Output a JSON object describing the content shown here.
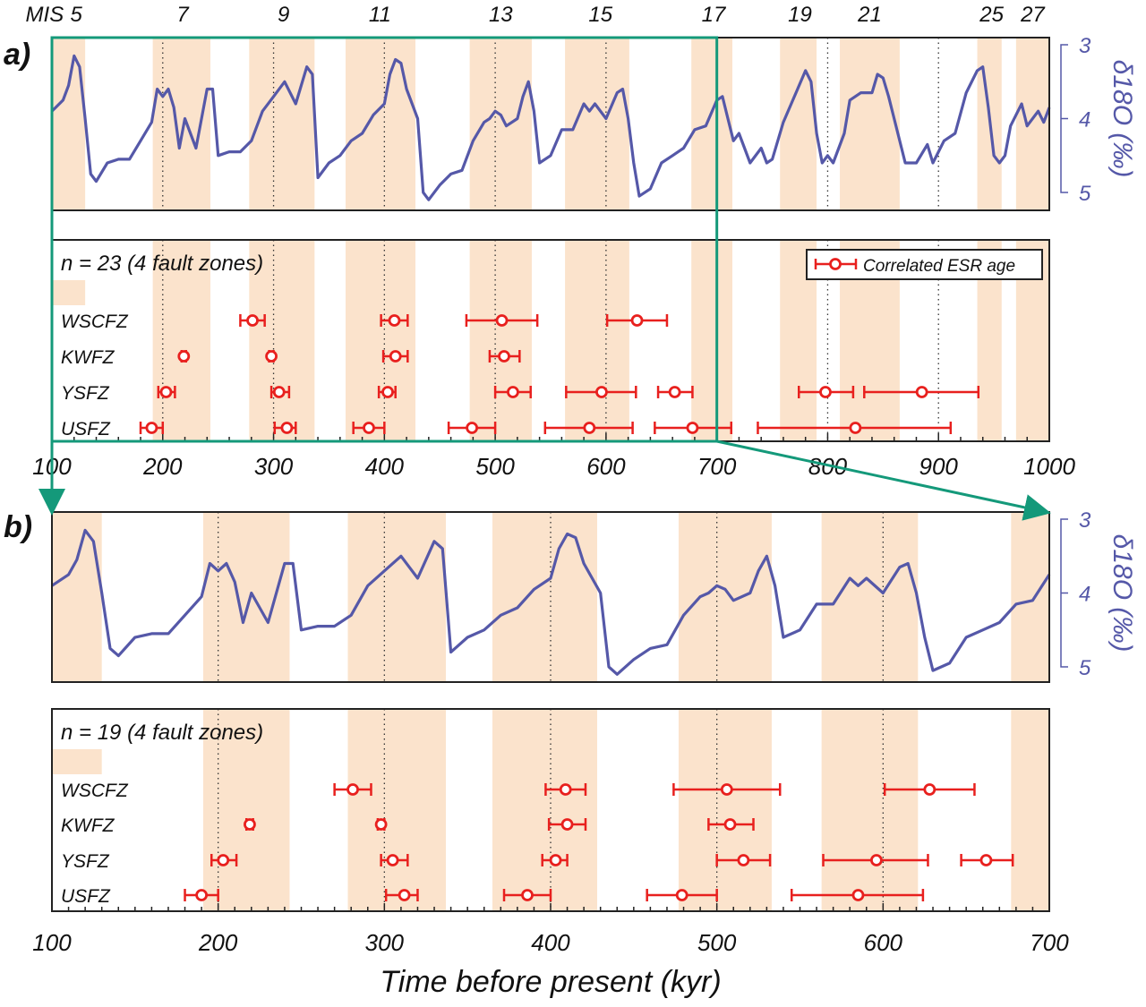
{
  "colors": {
    "band": "#fbe3cc",
    "curve": "#5558a8",
    "error_bar": "#e8201e",
    "zoom_box": "#14997a",
    "axis_right": "#5558a8"
  },
  "chart_data": [
    {
      "panel_label": "a)",
      "type": "line",
      "x_range": [
        100,
        1000
      ],
      "y_range": [
        3,
        5
      ],
      "y_inverted": true,
      "ylabel": "δ18O (‰)",
      "y_ticks": [
        "3",
        "4",
        "5"
      ],
      "x_ticks": [
        "100",
        "200",
        "300",
        "400",
        "500",
        "600",
        "700",
        "800",
        "900",
        "1000"
      ],
      "mis_prefix": "MIS",
      "mis_labels": [
        {
          "label": "5",
          "x": 122
        },
        {
          "label": "7",
          "x": 218
        },
        {
          "label": "9",
          "x": 309
        },
        {
          "label": "11",
          "x": 396
        },
        {
          "label": "13",
          "x": 505
        },
        {
          "label": "15",
          "x": 595
        },
        {
          "label": "17",
          "x": 697
        },
        {
          "label": "19",
          "x": 775
        },
        {
          "label": "21",
          "x": 838
        },
        {
          "label": "25",
          "x": 948
        },
        {
          "label": "27",
          "x": 985
        }
      ],
      "dotted_lines": [
        200,
        300,
        400,
        500,
        600,
        800,
        900
      ],
      "shaded_bands": [
        [
          100,
          130
        ],
        [
          191,
          243
        ],
        [
          278,
          337
        ],
        [
          365,
          428
        ],
        [
          477,
          533
        ],
        [
          563,
          621
        ],
        [
          677,
          714
        ],
        [
          757,
          790
        ],
        [
          811,
          865
        ],
        [
          935,
          957
        ],
        [
          970,
          1000
        ]
      ],
      "count_label": "n = 23 (4 fault zones)",
      "legend": "Correlated ESR age",
      "legend_position": "top-right",
      "rows": [
        {
          "name": "WSCFZ",
          "ages": [
            [
              281,
              270,
              292
            ],
            [
              409,
              397,
              421
            ],
            [
              506,
              474,
              538
            ],
            [
              628,
              601,
              655
            ]
          ]
        },
        {
          "name": "KWFZ",
          "ages": [
            [
              219,
              217,
              221
            ],
            [
              298,
              296,
              300
            ],
            [
              410,
              399,
              421
            ],
            [
              508,
              495,
              522
            ]
          ]
        },
        {
          "name": "YSFZ",
          "ages": [
            [
              203,
              196,
              211
            ],
            [
              305,
              298,
              314
            ],
            [
              403,
              395,
              410
            ],
            [
              516,
              500,
              532
            ],
            [
              596,
              564,
              627
            ],
            [
              662,
              647,
              678
            ],
            [
              798,
              774,
              823
            ],
            [
              885,
              833,
              936
            ]
          ]
        },
        {
          "name": "USFZ",
          "ages": [
            [
              190,
              180,
              200
            ],
            [
              312,
              301,
              320
            ],
            [
              386,
              372,
              400
            ],
            [
              479,
              458,
              500
            ],
            [
              585,
              545,
              624
            ],
            [
              678,
              644,
              713
            ],
            [
              825,
              737,
              911
            ]
          ]
        }
      ]
    },
    {
      "panel_label": "b)",
      "type": "line",
      "x_range": [
        100,
        700
      ],
      "y_range": [
        3,
        5
      ],
      "y_inverted": true,
      "ylabel": "δ18O (‰)",
      "y_ticks": [
        "3",
        "4",
        "5"
      ],
      "x_ticks": [
        "100",
        "200",
        "300",
        "400",
        "500",
        "600",
        "700"
      ],
      "xlabel": "Time before present (kyr)",
      "dotted_lines": [
        200,
        300,
        400,
        500,
        600
      ],
      "shaded_bands": [
        [
          100,
          130
        ],
        [
          191,
          243
        ],
        [
          278,
          337
        ],
        [
          365,
          428
        ],
        [
          477,
          533
        ],
        [
          563,
          621
        ],
        [
          677,
          700
        ]
      ],
      "count_label": "n = 19 (4 fault zones)",
      "rows": [
        {
          "name": "WSCFZ",
          "ages": [
            [
              281,
              270,
              292
            ],
            [
              409,
              397,
              421
            ],
            [
              506,
              474,
              538
            ],
            [
              628,
              601,
              655
            ]
          ]
        },
        {
          "name": "KWFZ",
          "ages": [
            [
              219,
              217,
              221
            ],
            [
              298,
              296,
              300
            ],
            [
              410,
              399,
              421
            ],
            [
              508,
              495,
              522
            ]
          ]
        },
        {
          "name": "YSFZ",
          "ages": [
            [
              203,
              196,
              211
            ],
            [
              305,
              298,
              314
            ],
            [
              403,
              395,
              410
            ],
            [
              516,
              500,
              532
            ],
            [
              596,
              564,
              627
            ],
            [
              662,
              647,
              678
            ]
          ]
        },
        {
          "name": "USFZ",
          "ages": [
            [
              190,
              180,
              200
            ],
            [
              312,
              301,
              320
            ],
            [
              386,
              372,
              400
            ],
            [
              479,
              458,
              500
            ],
            [
              585,
              545,
              624
            ]
          ]
        }
      ]
    }
  ],
  "d18o": {
    "x": [
      100,
      110,
      115,
      120,
      125,
      130,
      135,
      140,
      150,
      160,
      170,
      180,
      190,
      195,
      200,
      205,
      210,
      215,
      220,
      230,
      240,
      245,
      250,
      260,
      270,
      280,
      290,
      300,
      310,
      320,
      330,
      335,
      340,
      350,
      360,
      370,
      380,
      390,
      400,
      405,
      410,
      415,
      420,
      430,
      435,
      440,
      450,
      460,
      470,
      480,
      490,
      495,
      500,
      505,
      510,
      520,
      525,
      530,
      535,
      540,
      550,
      560,
      570,
      580,
      585,
      590,
      600,
      610,
      615,
      620,
      625,
      630,
      640,
      650,
      660,
      670,
      680,
      690,
      700,
      705,
      710,
      715,
      720,
      730,
      740,
      745,
      750,
      760,
      770,
      780,
      785,
      790,
      795,
      800,
      805,
      815,
      820,
      830,
      840,
      845,
      850,
      855,
      860,
      870,
      880,
      890,
      895,
      905,
      915,
      925,
      935,
      940,
      945,
      950,
      955,
      960,
      965,
      975,
      980,
      990,
      995,
      1000
    ],
    "y": [
      3.9,
      3.75,
      3.55,
      3.15,
      3.3,
      4.0,
      4.75,
      4.85,
      4.6,
      4.55,
      4.55,
      4.3,
      4.05,
      3.6,
      3.7,
      3.6,
      3.85,
      4.4,
      4.0,
      4.4,
      3.6,
      3.6,
      4.5,
      4.45,
      4.45,
      4.3,
      3.9,
      3.7,
      3.5,
      3.8,
      3.3,
      3.4,
      4.8,
      4.6,
      4.5,
      4.3,
      4.2,
      3.95,
      3.8,
      3.4,
      3.2,
      3.25,
      3.6,
      4.0,
      5.0,
      5.1,
      4.9,
      4.75,
      4.7,
      4.3,
      4.05,
      4.0,
      3.9,
      3.95,
      4.1,
      4.0,
      3.7,
      3.5,
      3.9,
      4.6,
      4.5,
      4.15,
      4.15,
      3.8,
      3.9,
      3.8,
      4.0,
      3.65,
      3.6,
      4.0,
      4.6,
      5.05,
      4.95,
      4.6,
      4.5,
      4.4,
      4.15,
      4.1,
      3.75,
      3.7,
      4.0,
      4.3,
      4.2,
      4.6,
      4.4,
      4.6,
      4.55,
      4.05,
      3.7,
      3.35,
      3.5,
      4.2,
      4.6,
      4.5,
      4.6,
      4.2,
      3.75,
      3.65,
      3.65,
      3.4,
      3.45,
      3.7,
      4.0,
      4.6,
      4.6,
      4.35,
      4.6,
      4.3,
      4.2,
      3.65,
      3.35,
      3.3,
      3.85,
      4.5,
      4.6,
      4.5,
      4.1,
      3.8,
      4.1,
      3.9,
      4.05,
      3.85
    ]
  }
}
